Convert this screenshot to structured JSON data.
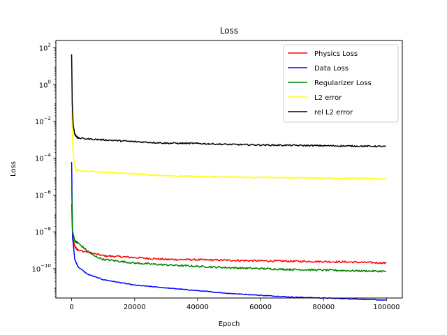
{
  "chart_data": {
    "type": "line",
    "title": "Loss",
    "xlabel": "Epoch",
    "ylabel": "Loss",
    "xlim": [
      -5000,
      105000
    ],
    "ylim_log10": [
      -11.6,
      2.4
    ],
    "y_scale": "log",
    "x_ticks": [
      0,
      20000,
      40000,
      60000,
      80000,
      100000
    ],
    "x_tick_labels": [
      "0",
      "20000",
      "40000",
      "60000",
      "80000",
      "100000"
    ],
    "y_ticks_log10": [
      2,
      0,
      -2,
      -4,
      -6,
      -8,
      -10
    ],
    "y_tick_labels": [
      {
        "base": "10",
        "exp": "2"
      },
      {
        "base": "10",
        "exp": "0"
      },
      {
        "base": "10",
        "exp": "−2"
      },
      {
        "base": "10",
        "exp": "−4"
      },
      {
        "base": "10",
        "exp": "−6"
      },
      {
        "base": "10",
        "exp": "−8"
      },
      {
        "base": "10",
        "exp": "−10"
      }
    ],
    "grid": false,
    "legend_position": "upper right",
    "series": [
      {
        "name": "Physics Loss",
        "color": "#ff0000",
        "x": [
          0,
          300,
          1000,
          2000,
          5000,
          10000,
          20000,
          30000,
          40000,
          50000,
          60000,
          70000,
          80000,
          90000,
          100000
        ],
        "log10y": [
          -6.5,
          -8.3,
          -8.8,
          -9.0,
          -9.1,
          -9.3,
          -9.4,
          -9.5,
          -9.52,
          -9.55,
          -9.58,
          -9.6,
          -9.62,
          -9.65,
          -9.7
        ],
        "noise": 0.05
      },
      {
        "name": "Data Loss",
        "color": "#0000ff",
        "x": [
          0,
          300,
          1000,
          2000,
          5000,
          10000,
          20000,
          30000,
          40000,
          50000,
          60000,
          70000,
          80000,
          90000,
          100000
        ],
        "log10y": [
          -4.2,
          -8.3,
          -9.5,
          -9.9,
          -10.3,
          -10.6,
          -10.9,
          -11.05,
          -11.2,
          -11.35,
          -11.45,
          -11.55,
          -11.6,
          -11.65,
          -11.72
        ],
        "noise": 0.02
      },
      {
        "name": "Regularizer Loss",
        "color": "#008000",
        "x": [
          0,
          300,
          1000,
          2000,
          4000,
          7000,
          10000,
          20000,
          30000,
          40000,
          50000,
          60000,
          70000,
          80000,
          90000,
          100000
        ],
        "log10y": [
          -5.5,
          -8.0,
          -8.5,
          -8.6,
          -8.9,
          -9.3,
          -9.5,
          -9.7,
          -9.8,
          -9.88,
          -9.95,
          -10.0,
          -10.05,
          -10.08,
          -10.12,
          -10.15
        ],
        "noise": 0.05
      },
      {
        "name": "L2 error",
        "color": "#ffff00",
        "x": [
          0,
          300,
          800,
          1500,
          3000,
          10000,
          20000,
          30000,
          40000,
          50000,
          60000,
          70000,
          80000,
          90000,
          100000
        ],
        "log10y": [
          -1.0,
          -3.2,
          -4.3,
          -4.65,
          -4.7,
          -4.75,
          -4.85,
          -4.95,
          -5.0,
          -5.02,
          -5.05,
          -5.06,
          -5.08,
          -5.1,
          -5.12
        ],
        "noise": 0.04
      },
      {
        "name": "rel L2 error",
        "color": "#000000",
        "x": [
          0,
          200,
          500,
          1000,
          2000,
          5000,
          10000,
          20000,
          30000,
          40000,
          50000,
          60000,
          70000,
          80000,
          90000,
          100000
        ],
        "log10y": [
          1.65,
          -1.0,
          -2.2,
          -2.7,
          -2.9,
          -2.95,
          -3.0,
          -3.1,
          -3.18,
          -3.2,
          -3.25,
          -3.28,
          -3.3,
          -3.32,
          -3.34,
          -3.36
        ],
        "noise": 0.04
      }
    ]
  }
}
